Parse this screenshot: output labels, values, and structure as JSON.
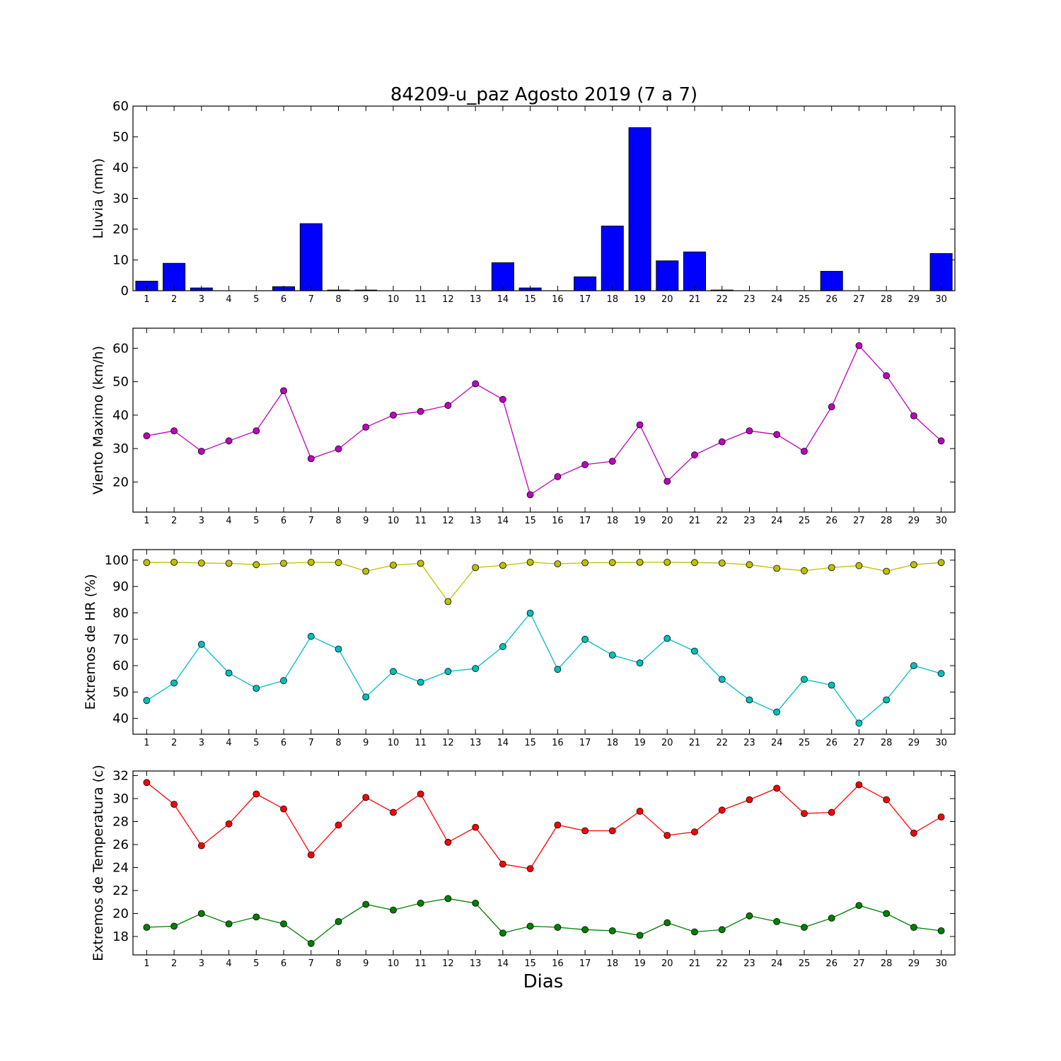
{
  "figure": {
    "title": "84209-u_paz Agosto 2019  (7 a 7)",
    "xlabel": "Dias"
  },
  "chart_data": [
    {
      "type": "bar",
      "ylabel": "Lluvia (mm)",
      "ylim": [
        0,
        60
      ],
      "yticks": [
        0,
        10,
        20,
        30,
        40,
        50,
        60
      ],
      "categories": [
        "1",
        "2",
        "3",
        "4",
        "5",
        "6",
        "7",
        "8",
        "9",
        "10",
        "11",
        "12",
        "13",
        "14",
        "15",
        "16",
        "17",
        "18",
        "19",
        "20",
        "21",
        "22",
        "23",
        "24",
        "25",
        "26",
        "27",
        "28",
        "29",
        "30"
      ],
      "series": [
        {
          "color": "#0000ff",
          "values": [
            3.1,
            8.9,
            0.9,
            0,
            0,
            1.3,
            21.8,
            0.2,
            0.2,
            0,
            0,
            0,
            0,
            9.1,
            0.9,
            0,
            4.5,
            21.0,
            53.0,
            9.7,
            12.6,
            0.2,
            0,
            0,
            0,
            6.3,
            0,
            0,
            0,
            12.1
          ]
        }
      ]
    },
    {
      "type": "line",
      "ylabel": "Viento Maximo (km/h)",
      "ylim": [
        11,
        66
      ],
      "yticks": [
        20,
        30,
        40,
        50,
        60
      ],
      "categories": [
        "1",
        "2",
        "3",
        "4",
        "5",
        "6",
        "7",
        "8",
        "9",
        "10",
        "11",
        "12",
        "13",
        "14",
        "15",
        "16",
        "17",
        "18",
        "19",
        "20",
        "21",
        "22",
        "23",
        "24",
        "25",
        "26",
        "27",
        "28",
        "29",
        "30"
      ],
      "series": [
        {
          "color": "#bf00bf",
          "values": [
            33.8,
            35.3,
            29.2,
            32.3,
            35.3,
            47.3,
            27.0,
            29.9,
            36.4,
            40.0,
            41.1,
            42.9,
            49.4,
            44.7,
            16.2,
            21.6,
            25.2,
            26.2,
            37.1,
            20.2,
            28.1,
            32.0,
            35.3,
            34.2,
            29.2,
            42.5,
            60.8,
            51.8,
            39.8,
            32.3
          ]
        }
      ]
    },
    {
      "type": "line",
      "ylabel": "Extremos de HR (%)",
      "ylim": [
        34,
        104
      ],
      "yticks": [
        40,
        50,
        60,
        70,
        80,
        90,
        100
      ],
      "categories": [
        "1",
        "2",
        "3",
        "4",
        "5",
        "6",
        "7",
        "8",
        "9",
        "10",
        "11",
        "12",
        "13",
        "14",
        "15",
        "16",
        "17",
        "18",
        "19",
        "20",
        "21",
        "22",
        "23",
        "24",
        "25",
        "26",
        "27",
        "28",
        "29",
        "30"
      ],
      "series": [
        {
          "color": "#bfbf00",
          "values": [
            99.1,
            99.2,
            98.9,
            98.8,
            98.3,
            98.8,
            99.2,
            99.1,
            95.8,
            98.1,
            98.8,
            84.3,
            97.2,
            98.0,
            99.2,
            98.6,
            99.0,
            99.1,
            99.2,
            99.2,
            99.1,
            98.9,
            98.3,
            96.9,
            96.0,
            97.2,
            97.9,
            95.8,
            98.3,
            99.1
          ]
        },
        {
          "color": "#00bfbf",
          "values": [
            46.8,
            53.4,
            68.1,
            57.2,
            51.4,
            54.3,
            71.1,
            66.3,
            48.1,
            57.8,
            53.7,
            57.8,
            58.9,
            67.2,
            79.9,
            58.6,
            70.0,
            64.0,
            61.0,
            70.3,
            65.5,
            54.8,
            47.0,
            42.4,
            54.8,
            52.6,
            38.2,
            47.0,
            60.0,
            57.0
          ]
        }
      ]
    },
    {
      "type": "line",
      "ylabel": "Extremos de Temperatura (c)",
      "ylim": [
        16.4,
        32.4
      ],
      "yticks": [
        18,
        20,
        22,
        24,
        26,
        28,
        30,
        32
      ],
      "categories": [
        "1",
        "2",
        "3",
        "4",
        "5",
        "6",
        "7",
        "8",
        "9",
        "10",
        "11",
        "12",
        "13",
        "14",
        "15",
        "16",
        "17",
        "18",
        "19",
        "20",
        "21",
        "22",
        "23",
        "24",
        "25",
        "26",
        "27",
        "28",
        "29",
        "30"
      ],
      "series": [
        {
          "color": "#ff0000",
          "values": [
            31.4,
            29.5,
            25.9,
            27.8,
            30.4,
            29.1,
            25.1,
            27.7,
            30.1,
            28.8,
            30.4,
            26.2,
            27.5,
            24.3,
            23.9,
            27.7,
            27.2,
            27.2,
            28.9,
            26.8,
            27.1,
            29.0,
            29.9,
            30.9,
            28.7,
            28.8,
            31.2,
            29.9,
            27.0,
            28.4
          ]
        },
        {
          "color": "#008000",
          "values": [
            18.8,
            18.9,
            20.0,
            19.1,
            19.7,
            19.1,
            17.4,
            19.3,
            20.8,
            20.3,
            20.9,
            21.3,
            20.9,
            18.3,
            18.9,
            18.8,
            18.6,
            18.5,
            18.1,
            19.2,
            18.4,
            18.6,
            19.8,
            19.3,
            18.8,
            19.6,
            20.7,
            20.0,
            18.8,
            18.5
          ]
        }
      ]
    }
  ]
}
